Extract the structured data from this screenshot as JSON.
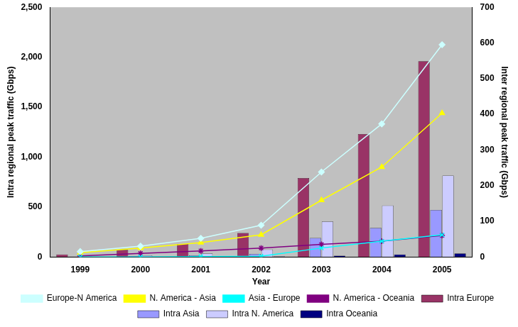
{
  "chart_data": {
    "type": "bar",
    "x_label": "Year",
    "y_label": "Intra regional peak traffic (Gbps)",
    "y2_label": "Inter regional peak traffic (Gbps)",
    "categories": [
      "1999",
      "2000",
      "2001",
      "2002",
      "2003",
      "2004",
      "2005"
    ],
    "ylim": [
      0,
      2500
    ],
    "yticks": [
      0,
      500,
      1000,
      1500,
      2000,
      2500
    ],
    "y2lim": [
      0,
      700
    ],
    "y2ticks": [
      0,
      100,
      200,
      300,
      400,
      500,
      600,
      700
    ],
    "grid": false,
    "legend": "bottom",
    "series": [
      {
        "name": "Intra Europe",
        "type": "bar",
        "color": "#993366",
        "values": [
          25,
          70,
          130,
          240,
          790,
          1230,
          1960
        ]
      },
      {
        "name": "Intra Asia",
        "type": "bar",
        "color": "#9999ff",
        "values": [
          3,
          8,
          15,
          30,
          190,
          290,
          470
        ]
      },
      {
        "name": "Intra N. America",
        "type": "bar",
        "color": "#ccccff",
        "values": [
          5,
          15,
          35,
          75,
          355,
          515,
          815
        ]
      },
      {
        "name": "Intra Oceania",
        "type": "bar",
        "color": "#000080",
        "values": [
          1,
          2,
          3,
          5,
          12,
          25,
          35
        ]
      },
      {
        "name": "Europe-N America",
        "type": "line",
        "axis": "y2",
        "color": "#ccffff",
        "marker": "diamond",
        "values": [
          15,
          30,
          52,
          89,
          238,
          373,
          595
        ]
      },
      {
        "name": "N. America - Asia",
        "type": "line",
        "axis": "y2",
        "color": "#ffff00",
        "marker": "triangle",
        "values": [
          12,
          25,
          40,
          62,
          159,
          252,
          403
        ]
      },
      {
        "name": "Asia - Europe",
        "type": "line",
        "axis": "y2",
        "color": "#00ffff",
        "marker": "x",
        "values": [
          0,
          0,
          1,
          2,
          25,
          44,
          62
        ]
      },
      {
        "name": "N. America - Oceania",
        "type": "line",
        "axis": "y2",
        "color": "#800080",
        "marker": "star",
        "values": [
          3,
          10,
          17,
          25,
          35,
          44,
          60
        ]
      }
    ]
  }
}
